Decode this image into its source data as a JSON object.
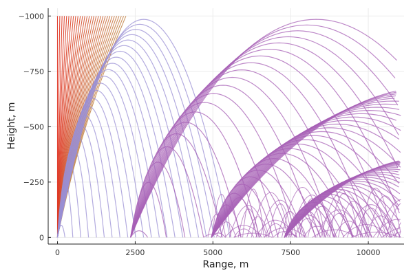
{
  "chart_data": {
    "type": "line",
    "title": "",
    "xlabel": "Range, m",
    "ylabel": "Height, m",
    "xlim": [
      -300,
      11150
    ],
    "ylim": [
      30,
      -1035
    ],
    "y_axis_inverted": true,
    "grid": true,
    "legend": "none",
    "x_ticks": [
      0,
      2500,
      5000,
      7500,
      10000
    ],
    "x_tick_labels": [
      "0",
      "2500",
      "5000",
      "7500",
      "10000"
    ],
    "y_ticks": [
      0,
      -250,
      -500,
      -750,
      -1000
    ],
    "y_tick_labels": [
      "0",
      "−250",
      "−500",
      "−750",
      "−1000"
    ],
    "families": [
      {
        "description_color_start": "#e0301e",
        "description_color_end": "#c58a4f",
        "kind": "steep-rays",
        "count": 31,
        "origin": [
          0,
          0
        ],
        "end_height": -1000,
        "end_ranges_start": 0,
        "end_ranges_stop": 2200
      },
      {
        "kind": "arch",
        "color": "#9a8fd4",
        "count": 22,
        "start_x": 0,
        "end_x_start": 240,
        "end_x_stop": 5550,
        "peak_height_start": -55,
        "peak_height_stop": -985
      },
      {
        "kind": "arch",
        "color": "#a760b5",
        "count": 20,
        "start_x": 2350,
        "end_x_start": 2900,
        "end_x_stop": 14300,
        "peak_height_start": -30,
        "peak_height_stop": -985
      },
      {
        "kind": "arch",
        "color": "#a760b5",
        "count": 28,
        "start_x": 4950,
        "end_x_start": 5400,
        "end_x_stop": 19200,
        "peak_height_start": -20,
        "peak_height_stop": -680
      },
      {
        "kind": "arch",
        "color": "#a760b5",
        "count": 30,
        "start_x": 7300,
        "end_x_start": 7700,
        "end_x_stop": 16500,
        "peak_height_start": -15,
        "peak_height_stop": -360
      },
      {
        "kind": "small-arches",
        "color": "#a760b5",
        "count": 48,
        "x_start": 4700,
        "x_stop": 11000,
        "width": 1100,
        "peak_height_start": -15,
        "peak_height_stop": -230
      }
    ]
  }
}
